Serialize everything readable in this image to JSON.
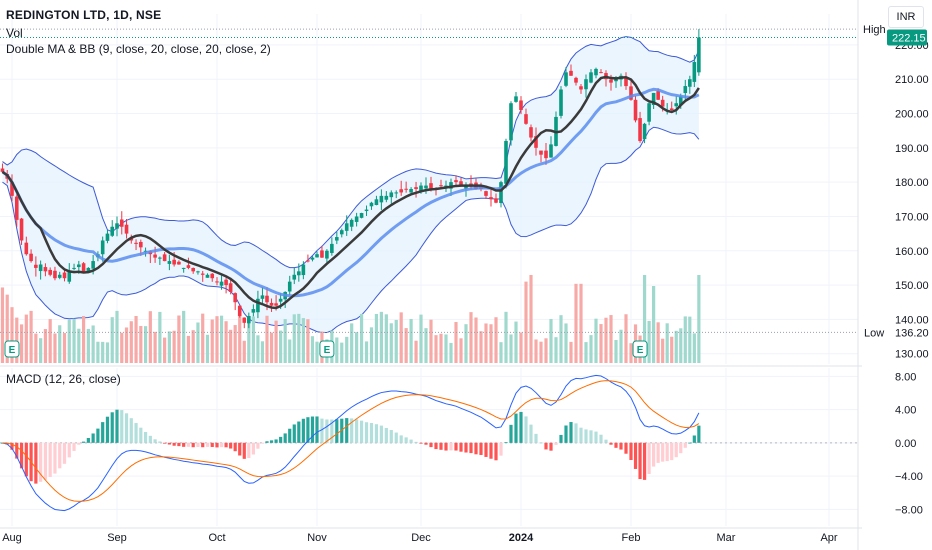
{
  "header": {
    "title": "REDINGTON LTD, 1D, NSE",
    "vol_label": "Vol",
    "indicator_label": "Double MA & BB (9, close, 20, close, 20, close, 2)",
    "macd_label": "MACD (12, 26, close)",
    "currency": "INR"
  },
  "colors": {
    "up": "#089981",
    "down": "#f23645",
    "ma_fast": "#3a3a3a",
    "ma_slow": "#5b8def",
    "band": "#3d5ad6",
    "band_fill": "#e3f2fd",
    "macd_line": "#2962ff",
    "signal_line": "#ff6d00",
    "price_tag": "#089981"
  },
  "chart_data": [
    {
      "type": "candlestick",
      "title": "REDINGTON LTD, 1D, NSE",
      "y_axis_ticks": [
        130,
        140,
        150,
        160,
        170,
        180,
        190,
        200,
        210,
        220
      ],
      "y_axis_tick_labels": [
        "130.00",
        "140.00",
        "150.00",
        "160.00",
        "170.00",
        "180.00",
        "190.00",
        "200.00",
        "210.00",
        "220.00"
      ],
      "ylim": [
        127,
        229
      ],
      "x_axis_labels": [
        "Aug",
        "Sep",
        "Oct",
        "Nov",
        "Dec",
        "2024",
        "Feb",
        "Mar",
        "Apr"
      ],
      "x_axis_label_dates": [
        "2023-08-01",
        "2023-09-01",
        "2023-10-01",
        "2023-11-01",
        "2023-12-01",
        "2024-01-01",
        "2024-02-01",
        "2024-03-01",
        "2024-04-01"
      ],
      "last_price": "222.15",
      "high_label": "High",
      "high_value": 224.6,
      "low_label": "Low",
      "low_value": "136.20",
      "closes": [
        183,
        181,
        176,
        169,
        163,
        159,
        157,
        155,
        156,
        154,
        153,
        152,
        153,
        152,
        154,
        155,
        156,
        154,
        155,
        157,
        159,
        163,
        165,
        167,
        168,
        167,
        165,
        163,
        162,
        161,
        160,
        159,
        158,
        158,
        157,
        157,
        156,
        156,
        155,
        155,
        154,
        154,
        153,
        153,
        152,
        151,
        151,
        150,
        148,
        145,
        141,
        139,
        141,
        143,
        146,
        147,
        145,
        144,
        144,
        146,
        148,
        151,
        153,
        154,
        156,
        157,
        158,
        159,
        158,
        160,
        162,
        164,
        166,
        168,
        169,
        170,
        171,
        172,
        174,
        175,
        176,
        176,
        177,
        177,
        177,
        178,
        178,
        178,
        179,
        179,
        178,
        178,
        179,
        179,
        180,
        180,
        179,
        179,
        179,
        178,
        178,
        176,
        175,
        174,
        180,
        192,
        203,
        205,
        201,
        197,
        193,
        190,
        188,
        187,
        191,
        199,
        207,
        212,
        211,
        209,
        207,
        210,
        212,
        213,
        212,
        210,
        209,
        210,
        211,
        208,
        204,
        198,
        192,
        197,
        203,
        206,
        204,
        202,
        201,
        201,
        203,
        205,
        208,
        210,
        215,
        222
      ],
      "macd_tick_values": [
        8,
        4,
        0,
        -4,
        -8
      ],
      "macd_tick_labels": [
        "8.00",
        "4.00",
        "0.00",
        "−4.00",
        "−8.00"
      ],
      "macd_ylim": [
        -10,
        9
      ],
      "series_names": [
        "Vol",
        "Double MA & BB (9, close, 20, close, 20, close, 2)",
        "MACD (12, 26, close)"
      ],
      "earnings_markers": [
        {
          "label": "E",
          "date": "2023-08-01"
        },
        {
          "label": "E",
          "date": "2023-11-03"
        },
        {
          "label": "E",
          "date": "2024-02-05"
        }
      ]
    }
  ]
}
